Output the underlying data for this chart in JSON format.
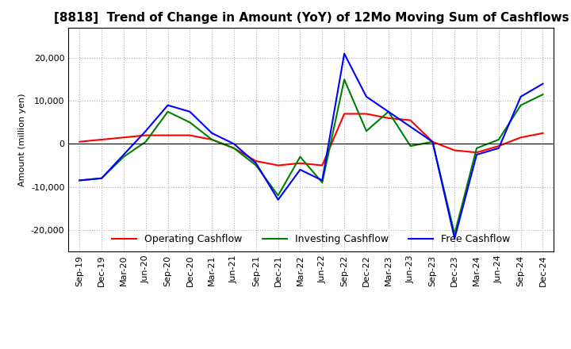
{
  "title": "[8818]  Trend of Change in Amount (YoY) of 12Mo Moving Sum of Cashflows",
  "ylabel": "Amount (million yen)",
  "ylim": [
    -25000,
    27000
  ],
  "yticks": [
    -20000,
    -10000,
    0,
    10000,
    20000
  ],
  "x_labels": [
    "Sep-19",
    "Dec-19",
    "Mar-20",
    "Jun-20",
    "Sep-20",
    "Dec-20",
    "Mar-21",
    "Jun-21",
    "Sep-21",
    "Dec-21",
    "Mar-22",
    "Jun-22",
    "Sep-22",
    "Dec-22",
    "Mar-23",
    "Jun-23",
    "Sep-23",
    "Dec-23",
    "Mar-24",
    "Jun-24",
    "Sep-24",
    "Dec-24"
  ],
  "operating": [
    500,
    1000,
    1500,
    2000,
    2000,
    2000,
    1000,
    -1000,
    -4000,
    -5000,
    -4500,
    -5000,
    7000,
    7000,
    6000,
    5500,
    500,
    -1500,
    -2000,
    -500,
    1500,
    2500
  ],
  "investing": [
    -8500,
    -8000,
    -3000,
    500,
    7500,
    5000,
    1000,
    -1000,
    -5000,
    -12000,
    -3000,
    -9000,
    15000,
    3000,
    7500,
    -500,
    500,
    -21000,
    -1000,
    1000,
    9000,
    11500
  ],
  "free": [
    -8500,
    -8000,
    -2500,
    3000,
    9000,
    7500,
    2500,
    0,
    -4500,
    -13000,
    -6000,
    -8500,
    21000,
    11000,
    7500,
    4000,
    500,
    -22000,
    -2500,
    -1000,
    11000,
    14000
  ],
  "op_color": "#ff0000",
  "inv_color": "#008000",
  "free_color": "#0000ff",
  "bg_color": "#ffffff",
  "grid_color": "#b0b0b0",
  "title_fontsize": 11,
  "axis_fontsize": 8,
  "legend_fontsize": 9
}
